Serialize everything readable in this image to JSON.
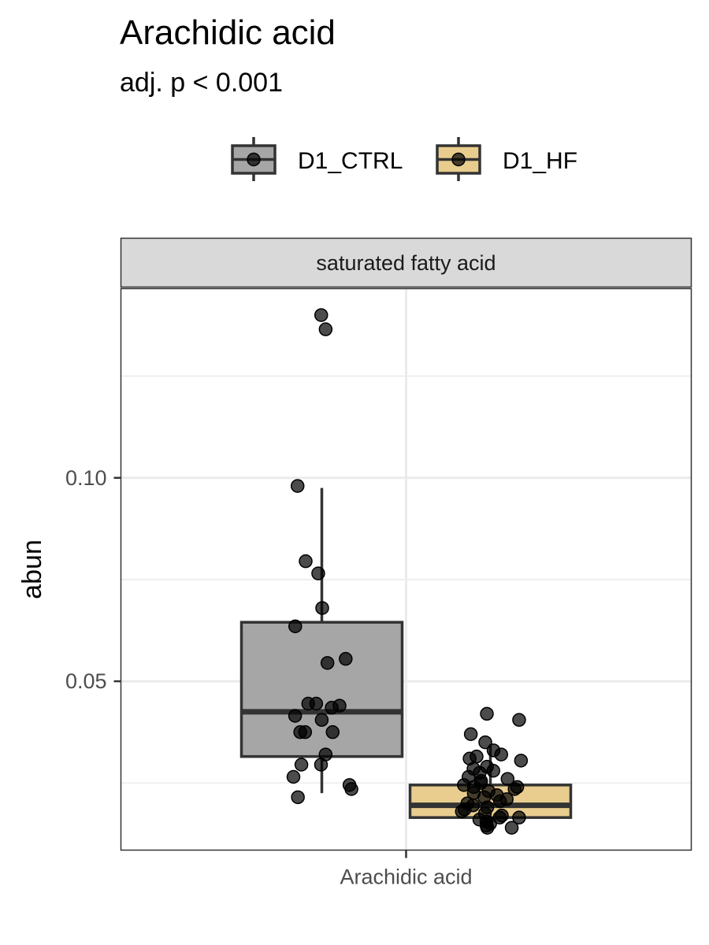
{
  "chart_data": {
    "type": "box",
    "title": "Arachidic acid",
    "subtitle": "adj. p < 0.001",
    "ylabel": "abun",
    "xlabel": "",
    "facet": "saturated fatty acid",
    "categories": [
      "Arachidic acid"
    ],
    "ylim": [
      0.0085,
      0.1465
    ],
    "y_ticks": [
      0.05,
      0.1
    ],
    "y_tick_labels": [
      "0.05",
      "0.10"
    ],
    "grid": true,
    "legend_position": "top",
    "series": [
      {
        "name": "D1_CTRL",
        "color": "#a6a6a6",
        "box": {
          "whisker_low": 0.0225,
          "q1": 0.0315,
          "median": 0.0425,
          "q3": 0.0645,
          "whisker_high": 0.0975
        },
        "points": [
          0.14,
          0.1365,
          0.098,
          0.0795,
          0.0765,
          0.068,
          0.0635,
          0.0555,
          0.0545,
          0.0445,
          0.0445,
          0.044,
          0.0435,
          0.0415,
          0.0405,
          0.0375,
          0.0375,
          0.0375,
          0.032,
          0.0295,
          0.0295,
          0.0265,
          0.0245,
          0.0235,
          0.0215
        ]
      },
      {
        "name": "D1_HF",
        "color": "#e8cd8f",
        "box": {
          "whisker_low": 0.014,
          "q1": 0.0165,
          "median": 0.0195,
          "q3": 0.0245,
          "whisker_high": 0.0345
        },
        "points": [
          0.042,
          0.0405,
          0.037,
          0.035,
          0.033,
          0.032,
          0.0315,
          0.031,
          0.0305,
          0.029,
          0.0285,
          0.028,
          0.0275,
          0.0265,
          0.026,
          0.0255,
          0.025,
          0.0245,
          0.024,
          0.024,
          0.0235,
          0.023,
          0.0225,
          0.022,
          0.0215,
          0.021,
          0.0205,
          0.02,
          0.0195,
          0.019,
          0.0185,
          0.018,
          0.0175,
          0.017,
          0.0165,
          0.0165,
          0.016,
          0.0155,
          0.015,
          0.0145,
          0.014,
          0.014
        ]
      }
    ]
  }
}
